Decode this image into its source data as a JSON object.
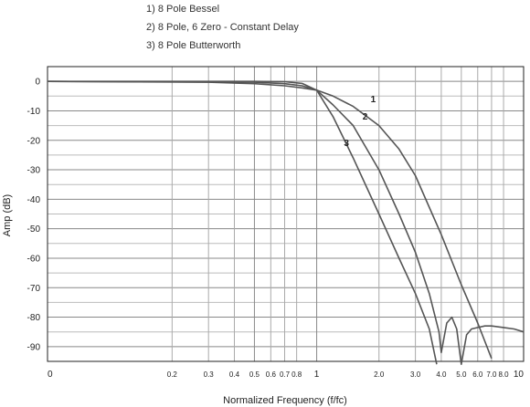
{
  "chart_data": {
    "type": "line",
    "title": "",
    "xlabel": "Normalized Frequency (f/fc)",
    "ylabel": "Amp (dB)",
    "x_scale": "log",
    "xlim": [
      0.05,
      10
    ],
    "ylim": [
      -95,
      5
    ],
    "grid": true,
    "legend": "top-left",
    "x_ticks": [
      {
        "value": 0.05,
        "label": "0"
      },
      {
        "value": 0.2,
        "label": "0.2"
      },
      {
        "value": 0.3,
        "label": "0.3"
      },
      {
        "value": 0.4,
        "label": "0.4"
      },
      {
        "value": 0.5,
        "label": "0.5"
      },
      {
        "value": 0.6,
        "label": "0.6"
      },
      {
        "value": 0.7,
        "label": "0.7"
      },
      {
        "value": 0.8,
        "label": "0.8"
      },
      {
        "value": 1,
        "label": "1"
      },
      {
        "value": 2,
        "label": "2.0"
      },
      {
        "value": 3,
        "label": "3.0"
      },
      {
        "value": 4,
        "label": "4.0"
      },
      {
        "value": 5,
        "label": "5.0"
      },
      {
        "value": 6,
        "label": "6.0"
      },
      {
        "value": 7,
        "label": "7.0"
      },
      {
        "value": 8,
        "label": "8.0"
      },
      {
        "value": 10,
        "label": "10"
      }
    ],
    "y_ticks": [
      0,
      -10,
      -20,
      -30,
      -40,
      -50,
      -60,
      -70,
      -80,
      -90
    ],
    "series": [
      {
        "name": "1) 8 Pole Bessel",
        "label": "1",
        "x": [
          0.05,
          0.3,
          0.5,
          0.7,
          0.85,
          1.0,
          1.2,
          1.5,
          2.0,
          2.5,
          3.0,
          4.0,
          5.0,
          6.0,
          7.0
        ],
        "y": [
          0,
          -0.3,
          -0.8,
          -1.5,
          -2.2,
          -3,
          -5,
          -8.5,
          -15,
          -23,
          -32,
          -52,
          -69,
          -82,
          -94
        ]
      },
      {
        "name": "2) 8 Pole, 6 Zero - Constant Delay",
        "label": "2",
        "x": [
          0.05,
          0.5,
          0.7,
          0.85,
          1.0,
          1.2,
          1.5,
          2.0,
          2.5,
          3.0,
          3.5,
          3.9,
          4.0,
          4.25,
          4.5,
          4.75,
          5.0,
          5.3,
          5.6,
          6.0,
          6.5,
          7.0,
          8.0,
          9.0,
          10.0
        ],
        "y": [
          0,
          -0.3,
          -0.8,
          -1.5,
          -3,
          -8,
          -15,
          -30,
          -45,
          -58,
          -72,
          -85,
          -92,
          -82,
          -80,
          -84,
          -96,
          -86,
          -84,
          -83.5,
          -83,
          -83,
          -83.5,
          -84,
          -85
        ]
      },
      {
        "name": "3) 8 Pole Butterworth",
        "label": "3",
        "x": [
          0.05,
          0.5,
          0.7,
          0.85,
          1.0,
          1.2,
          1.5,
          2.0,
          2.5,
          3.0,
          3.5,
          3.8
        ],
        "y": [
          0,
          0,
          -0.1,
          -0.7,
          -3,
          -12,
          -26,
          -45,
          -60,
          -72,
          -84,
          -96
        ]
      }
    ]
  }
}
